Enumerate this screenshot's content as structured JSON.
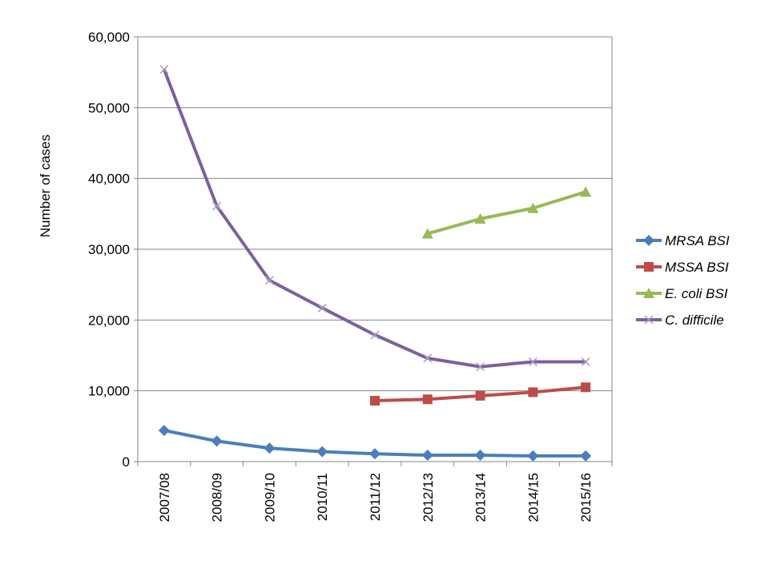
{
  "chart_data": {
    "type": "line",
    "title": "",
    "xlabel": "",
    "ylabel": "Number  of cases",
    "ylim": [
      0,
      60000
    ],
    "yticks": [
      0,
      10000,
      20000,
      30000,
      40000,
      50000,
      60000
    ],
    "ytick_labels": [
      "0",
      "10,000",
      "20,000",
      "30,000",
      "40,000",
      "50,000",
      "60,000"
    ],
    "grid": true,
    "legend_position": "right",
    "categories": [
      "2007/08",
      "2008/09",
      "2009/10",
      "2010/11",
      "2011/12",
      "2012/13",
      "2013/14",
      "2014/15",
      "2015/16"
    ],
    "series": [
      {
        "name": "MRSA BSI",
        "color": "#4a7ebb",
        "marker": "diamond",
        "values": [
          4400,
          2900,
          1900,
          1400,
          1100,
          900,
          900,
          800,
          800
        ]
      },
      {
        "name": "MSSA BSI",
        "color": "#be4b48",
        "marker": "square",
        "values": [
          null,
          null,
          null,
          null,
          8600,
          8800,
          9300,
          9800,
          10500
        ]
      },
      {
        "name": "E. coli BSI",
        "color": "#98b954",
        "marker": "triangle",
        "values": [
          null,
          null,
          null,
          null,
          null,
          32200,
          34300,
          35800,
          38100
        ]
      },
      {
        "name": "C. difficile",
        "color": "#7d60a0",
        "marker": "x",
        "values": [
          55400,
          36100,
          25600,
          21700,
          17900,
          14600,
          13400,
          14100,
          14100
        ]
      }
    ]
  }
}
